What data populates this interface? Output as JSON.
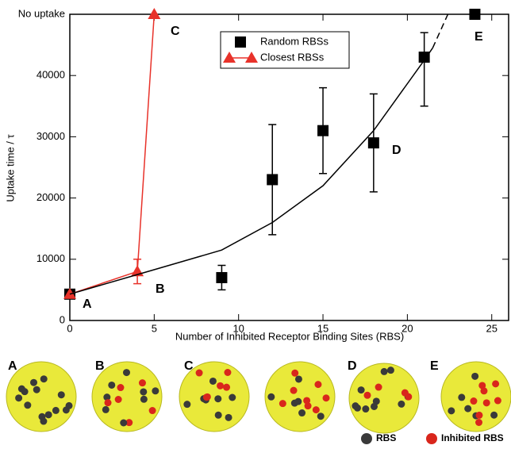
{
  "chart_data": {
    "type": "scatter",
    "x_label": "Number of Inhibited Receptor Binding Sites (RBS)",
    "y_label": "Uptake time / τ",
    "xlim": [
      0,
      26
    ],
    "xticks": [
      0,
      5,
      10,
      15,
      20,
      25
    ],
    "ylim": [
      0,
      50000
    ],
    "yticks": [
      0,
      10000,
      20000,
      30000,
      40000,
      {
        "value": 50000,
        "label": "No uptake"
      }
    ],
    "series": [
      {
        "name": "Random RBSs",
        "color": "#000000",
        "marker": "square",
        "line": false,
        "x": [
          0,
          9,
          12,
          15,
          18,
          21,
          24
        ],
        "values": [
          4300,
          7000,
          23000,
          31000,
          29000,
          43000,
          50000
        ],
        "err_low": [
          null,
          2000,
          9000,
          7000,
          8000,
          8000,
          null
        ],
        "err_high": [
          null,
          2000,
          9000,
          7000,
          8000,
          4000,
          null
        ]
      },
      {
        "name": "Closest RBSs",
        "color": "#e8322a",
        "marker": "triangle",
        "line": true,
        "x": [
          0,
          4,
          5
        ],
        "values": [
          4300,
          8000,
          50000
        ],
        "err_low": [
          null,
          2000,
          null
        ],
        "err_high": [
          null,
          2000,
          null
        ]
      },
      {
        "color": "#000000",
        "line": true,
        "x": [
          0,
          4,
          9,
          12,
          15,
          18,
          21,
          21.5
        ],
        "values": [
          4300,
          7500,
          11500,
          16000,
          22000,
          31000,
          42500,
          44500
        ]
      },
      {
        "color": "#000000",
        "line": true,
        "dash": true,
        "x": [
          21.5,
          22.4
        ],
        "values": [
          44500,
          50000
        ]
      }
    ],
    "annotations": [
      "A",
      "B",
      "C",
      "D",
      "E"
    ]
  },
  "panels": {
    "labels": [
      "A",
      "B",
      "C",
      "D",
      "E"
    ],
    "legend": [
      {
        "name": "RBS",
        "color": "#3a3a3a"
      },
      {
        "name": "Inhibited RBS",
        "color": "#d9261c"
      }
    ]
  }
}
